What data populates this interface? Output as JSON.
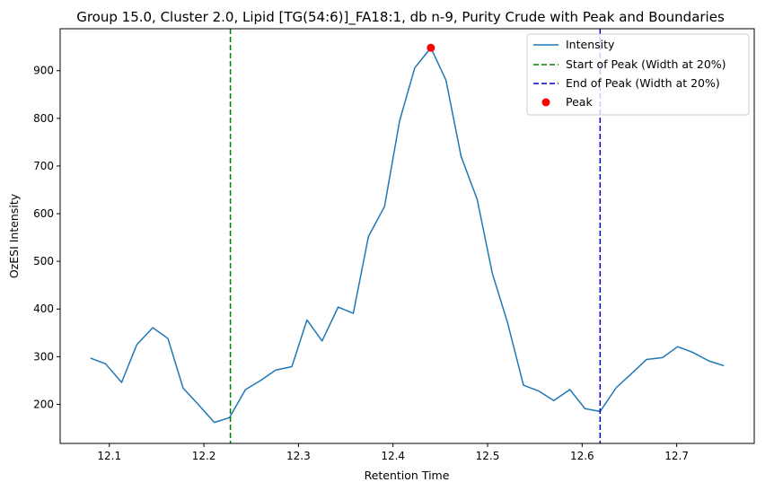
{
  "chart_data": {
    "type": "line",
    "title": "Group 15.0, Cluster 2.0, Lipid [TG(54:6)]_FA18:1, db n-9, Purity Crude with Peak and Boundaries",
    "xlabel": "Retention Time",
    "ylabel": "OzESI Intensity",
    "xlim": [
      12.048,
      12.782
    ],
    "ylim": [
      118,
      988
    ],
    "xticks": [
      12.1,
      12.2,
      12.3,
      12.4,
      12.5,
      12.6,
      12.7
    ],
    "xtick_labels": [
      "12.1",
      "12.2",
      "12.3",
      "12.4",
      "12.5",
      "12.6",
      "12.7"
    ],
    "yticks": [
      200,
      300,
      400,
      500,
      600,
      700,
      800,
      900
    ],
    "ytick_labels": [
      "200",
      "300",
      "400",
      "500",
      "600",
      "700",
      "800",
      "900"
    ],
    "grid": false,
    "legend_position": "top-right",
    "series": [
      {
        "name": "Intensity",
        "color": "#1f77b4",
        "style": "solid",
        "x": [
          12.08,
          12.096,
          12.113,
          12.129,
          12.146,
          12.162,
          12.178,
          12.194,
          12.211,
          12.227,
          12.244,
          12.26,
          12.276,
          12.293,
          12.309,
          12.325,
          12.342,
          12.358,
          12.374,
          12.391,
          12.407,
          12.423,
          12.44,
          12.456,
          12.472,
          12.489,
          12.505,
          12.521,
          12.538,
          12.554,
          12.57,
          12.587,
          12.603,
          12.619,
          12.636,
          12.652,
          12.668,
          12.685,
          12.701,
          12.717,
          12.734,
          12.75
        ],
        "y": [
          297,
          285,
          246,
          325,
          361,
          338,
          234,
          200,
          162,
          172,
          231,
          250,
          272,
          279,
          377,
          333,
          404,
          391,
          552,
          615,
          795,
          906,
          948,
          880,
          720,
          630,
          475,
          372,
          240,
          228,
          208,
          231,
          191,
          185,
          235,
          264,
          294,
          298,
          321,
          309,
          291,
          281
        ]
      }
    ],
    "reference_lines": [
      {
        "name": "Start of Peak (Width at 20%)",
        "x": 12.228,
        "color": "#008000",
        "style": "dashed"
      },
      {
        "name": "End of Peak (Width at 20%)",
        "x": 12.619,
        "color": "#0000cd",
        "style": "dashed"
      }
    ],
    "peak": {
      "name": "Peak",
      "x": 12.44,
      "y": 948,
      "color": "#ff0000"
    }
  }
}
